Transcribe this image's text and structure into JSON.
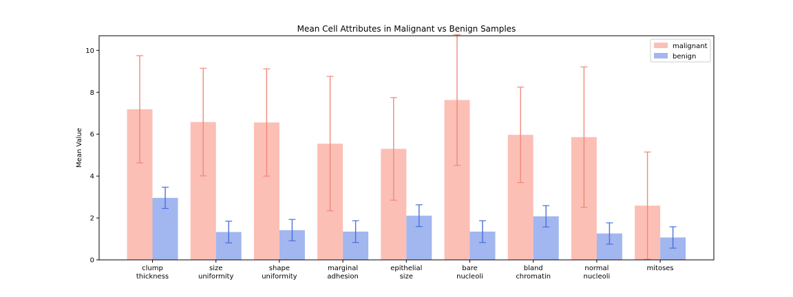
{
  "chart_data": {
    "type": "bar",
    "title": "Mean Cell Attributes in Malignant vs Benign Samples",
    "ylabel": "Mean Value",
    "xlabel": "",
    "ylim": [
      0,
      10.7
    ],
    "yticks": [
      0,
      2,
      4,
      6,
      8,
      10
    ],
    "grid": false,
    "legend_position": "top-right",
    "categories": [
      [
        "clump",
        "thickness"
      ],
      [
        "size",
        "uniformity"
      ],
      [
        "shape",
        "uniformity"
      ],
      [
        "marginal",
        "adhesion"
      ],
      [
        "epithelial",
        "size"
      ],
      [
        "bare",
        "nucleoli"
      ],
      [
        "bland",
        "chromatin"
      ],
      [
        "normal",
        "nucleoli"
      ],
      [
        "mitoses"
      ]
    ],
    "series": [
      {
        "name": "malignant",
        "color": "#fbbfb6",
        "error_color": "#f08878",
        "values": [
          7.19,
          6.58,
          6.56,
          5.55,
          5.3,
          7.63,
          5.97,
          5.86,
          2.59
        ],
        "errors": [
          2.56,
          2.57,
          2.56,
          3.21,
          2.45,
          3.12,
          2.28,
          3.35,
          2.56
        ]
      },
      {
        "name": "benign",
        "color": "#a2b6ef",
        "error_color": "#4a6fd8",
        "values": [
          2.96,
          1.33,
          1.42,
          1.35,
          2.11,
          1.35,
          2.08,
          1.26,
          1.07
        ],
        "errors": [
          0.51,
          0.52,
          0.51,
          0.52,
          0.52,
          0.52,
          0.51,
          0.51,
          0.51
        ]
      }
    ]
  }
}
